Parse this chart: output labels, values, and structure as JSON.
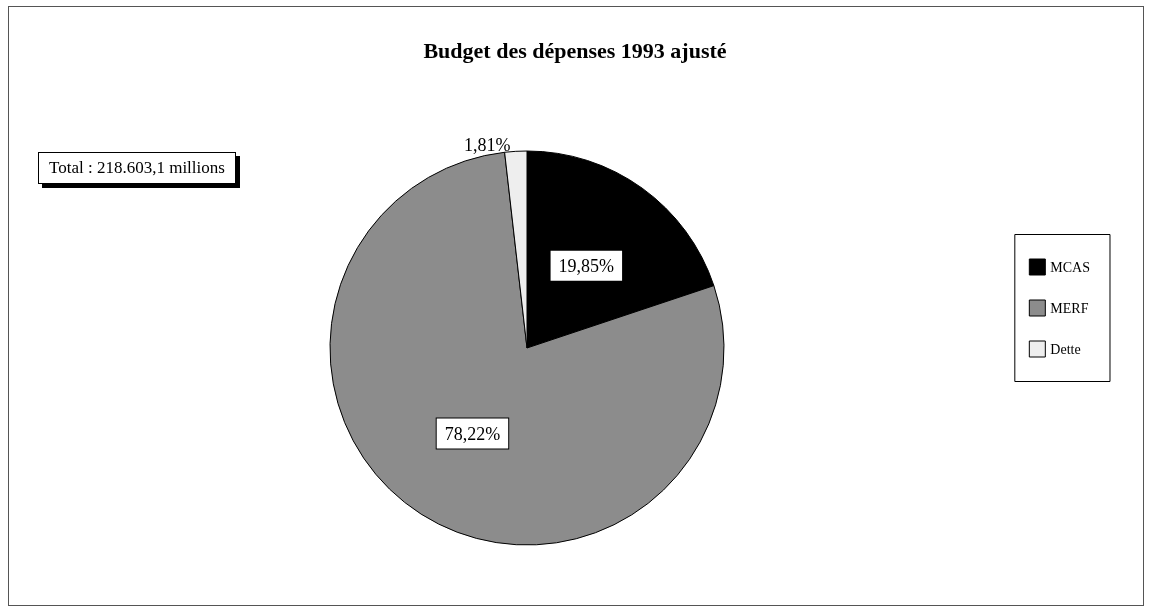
{
  "chart_data": {
    "type": "pie",
    "title": "Budget des dépenses 1993 ajusté",
    "categories": [
      "MCAS",
      "MERF",
      "Dette"
    ],
    "values": [
      19.85,
      78.22,
      1.81
    ],
    "value_labels": [
      "19,85%",
      "78,22%",
      "1,81%"
    ],
    "colors": [
      "#000000",
      "#8c8c8c",
      "#eeeeee"
    ],
    "annotations": [
      "Total : 218.603,1 millions"
    ],
    "legend": "right"
  }
}
